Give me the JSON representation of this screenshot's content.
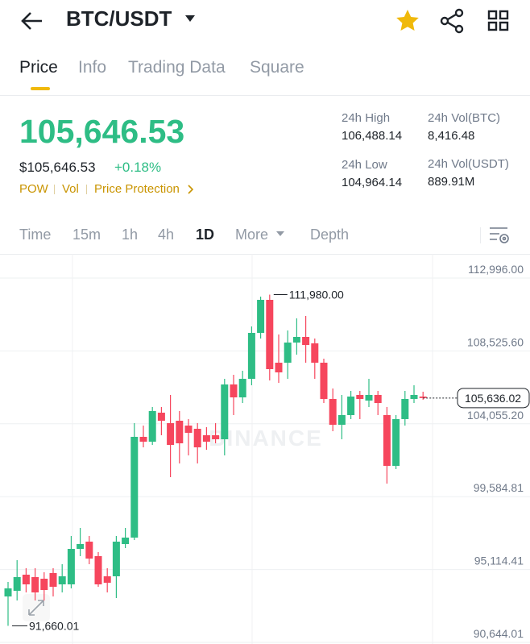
{
  "header": {
    "title": "BTC/USDT"
  },
  "tabs": [
    "Price",
    "Info",
    "Trading Data",
    "Square"
  ],
  "price": {
    "last": "105,646.53",
    "usd": "$105,646.53",
    "change": "+0.18%",
    "tags": [
      "POW",
      "Vol",
      "Price Protection"
    ]
  },
  "stats": [
    {
      "label": "24h High",
      "value": "106,488.14"
    },
    {
      "label": "24h Vol(BTC)",
      "value": "8,416.48"
    },
    {
      "label": "24h Low",
      "value": "104,964.14"
    },
    {
      "label": "24h Vol(USDT)",
      "value": "889.91M"
    }
  ],
  "intervals": [
    "Time",
    "15m",
    "1h",
    "4h",
    "1D",
    "More",
    "Depth"
  ],
  "chart_data": {
    "type": "candlestick",
    "watermark": "BINANCE",
    "up_color": "#2ebd85",
    "down_color": "#f6465d",
    "grid": true,
    "ylim": [
      90644.01,
      112996
    ],
    "yticks": [
      {
        "value": 112996,
        "label": "112,996.00"
      },
      {
        "value": 108525.6,
        "label": "108,525.60"
      },
      {
        "value": 104055.2,
        "label": "104,055.20"
      },
      {
        "value": 99584.81,
        "label": "99,584.81"
      },
      {
        "value": 95114.41,
        "label": "95,114.41"
      },
      {
        "value": 90644.01,
        "label": "90,644.01"
      }
    ],
    "open": [
      93462,
      93809,
      94798,
      94649,
      94550,
      94897,
      94204,
      94204,
      96380,
      96825,
      95935,
      94699,
      94699,
      96677,
      97073,
      103255,
      102958,
      104738,
      104095,
      104243,
      103947,
      103749,
      103353,
      103353,
      103106,
      106469,
      105677,
      106815,
      109633,
      111661,
      107804,
      107804,
      109040,
      109386,
      108991,
      107804,
      105579,
      103996,
      104590,
      105826,
      105480,
      105826,
      104590,
      101475,
      104343,
      105579,
      105727
    ],
    "high": [
      94353,
      95688,
      95194,
      95194,
      94946,
      95194,
      95441,
      97172,
      97666,
      97172,
      96183,
      95194,
      97172,
      97666,
      104095,
      103947,
      105084,
      105084,
      105826,
      104837,
      104343,
      104095,
      103848,
      104095,
      106815,
      107062,
      107309,
      110029,
      111859,
      111980,
      109535,
      109782,
      110524,
      110672,
      109287,
      108051,
      106221,
      105826,
      106073,
      106073,
      106815,
      106073,
      105084,
      104590,
      106073,
      106419,
      106024
    ],
    "low": [
      91660.01,
      93215,
      93709,
      93215,
      93215,
      93462,
      93709,
      93957,
      95935,
      95441,
      94056,
      93709,
      93363,
      96430,
      96924,
      102611,
      102760,
      103353,
      100782,
      101623,
      102117,
      101623,
      102463,
      102859,
      102117,
      104590,
      105331,
      106419,
      109287,
      106716,
      106567,
      106815,
      108298,
      107804,
      106815,
      105331,
      103600,
      103106,
      104343,
      104343,
      105084,
      104590,
      100387,
      101277,
      103947,
      105331,
      105530
    ],
    "close": [
      93957,
      94649,
      94204,
      93709,
      93858,
      94056,
      94699,
      96380,
      96677,
      95787,
      94204,
      94303,
      96825,
      97073,
      103255,
      102958,
      104837,
      104243,
      102760,
      102859,
      103502,
      102611,
      102958,
      103106,
      106469,
      105677,
      106815,
      109633,
      111661,
      107408,
      107210,
      109040,
      109386,
      108891,
      107804,
      105579,
      103996,
      104590,
      105727,
      105579,
      105826,
      105331,
      101475,
      104343,
      105579,
      105826,
      105636.02
    ],
    "high_marker": {
      "value": 111980,
      "label": "111,980.00"
    },
    "low_marker": {
      "value": 91660.01,
      "label": "91,660.01"
    },
    "last_price": {
      "value": 105636.02,
      "label": "105,636.02"
    }
  }
}
